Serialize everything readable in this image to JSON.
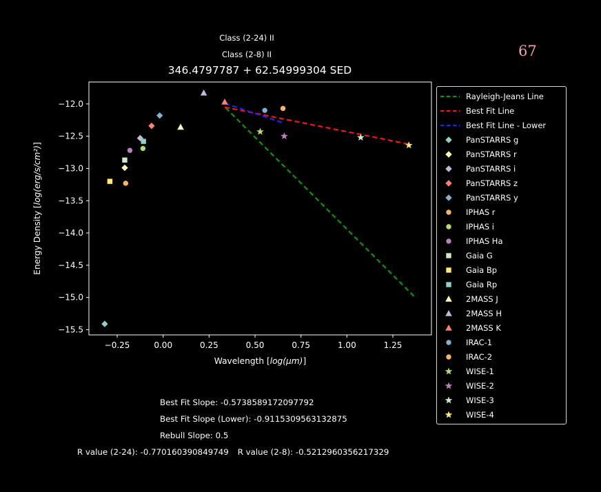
{
  "header": {
    "class_2_24": "Class (2-24) II",
    "class_2_8": "Class (2-8) II",
    "title": "346.4797787 + 62.54999304 SED",
    "page_number": "67",
    "page_number_color": "#f2a3af"
  },
  "stats": {
    "best_fit_slope": "Best Fit Slope: -0.5738589172097792",
    "best_fit_slope_lower": "Best Fit Slope (Lower): -0.9115309563132875",
    "rebull_slope": "Rebull Slope: 0.5",
    "r_value_2_24": "R value (2-24): -0.770160390849749",
    "r_value_2_8": "R value (2-8): -0.5212960356217329"
  },
  "chart_data": {
    "type": "scatter",
    "title": "346.4797787 + 62.54999304 SED",
    "xlabel": "Wavelength [log(μm)]",
    "ylabel": "Energy Density [log(erg/s/cm²)]",
    "xlim": [
      -0.404,
      1.46
    ],
    "ylim": [
      -15.58,
      -11.66
    ],
    "grid": false,
    "legend_position": "outside-right",
    "frame_color": "#ffffff",
    "background_color": "#000000",
    "xticks": {
      "values": [
        -0.25,
        0.0,
        0.25,
        0.5,
        0.75,
        1.0,
        1.25
      ],
      "labels": [
        "−0.25",
        "0.00",
        "0.25",
        "0.50",
        "0.75",
        "1.00",
        "1.25"
      ]
    },
    "yticks": {
      "values": [
        -12.0,
        -12.5,
        -13.0,
        -13.5,
        -14.0,
        -14.5,
        -15.0,
        -15.5
      ],
      "labels": [
        "−12.0",
        "−12.5",
        "−13.0",
        "−13.5",
        "−14.0",
        "−14.5",
        "−15.0",
        "−15.5"
      ]
    },
    "lines": [
      {
        "name": "Rayleigh-Jeans Line",
        "color": "#0f930f",
        "style": "dashed",
        "points": [
          [
            0.34,
            -12.06
          ],
          [
            1.375,
            -15.01
          ]
        ]
      },
      {
        "name": "Best Fit Line",
        "color": "#ff1010",
        "style": "dashed",
        "points": [
          [
            0.335,
            -12.05
          ],
          [
            1.35,
            -12.63
          ]
        ]
      },
      {
        "name": "Best Fit Line - Lower",
        "color": "#2020ff",
        "style": "dashed",
        "points": [
          [
            0.335,
            -11.99
          ],
          [
            0.66,
            -12.3
          ]
        ]
      }
    ],
    "points": [
      {
        "name": "PanSTARRS g",
        "marker": "diamond",
        "color": "#8dd3c7",
        "x": -0.318,
        "y": -15.41
      },
      {
        "name": "PanSTARRS r",
        "marker": "diamond",
        "color": "#ffffb3",
        "x": -0.209,
        "y": -12.99
      },
      {
        "name": "PanSTARRS i",
        "marker": "diamond",
        "color": "#bebada",
        "x": -0.125,
        "y": -12.53
      },
      {
        "name": "PanSTARRS z",
        "marker": "diamond",
        "color": "#fb8072",
        "x": -0.063,
        "y": -12.34
      },
      {
        "name": "PanSTARRS y",
        "marker": "diamond",
        "color": "#80b1d3",
        "x": -0.019,
        "y": -12.18
      },
      {
        "name": "IPHAS r",
        "marker": "circle",
        "color": "#fdb462",
        "x": -0.204,
        "y": -13.23
      },
      {
        "name": "IPHAS i",
        "marker": "circle",
        "color": "#b3de69",
        "x": -0.11,
        "y": -12.69
      },
      {
        "name": "IPHAS Ha",
        "marker": "circle",
        "color": "#bc80bd",
        "x": -0.181,
        "y": -12.72
      },
      {
        "name": "Gaia G",
        "marker": "square",
        "color": "#ccebc5",
        "x": -0.209,
        "y": -12.87
      },
      {
        "name": "Gaia Bp",
        "marker": "square",
        "color": "#ffed6f",
        "x": -0.29,
        "y": -13.2
      },
      {
        "name": "Gaia Rp",
        "marker": "square",
        "color": "#8dd3c7",
        "x": -0.107,
        "y": -12.58
      },
      {
        "name": "2MASS J",
        "marker": "triangle",
        "color": "#ffffb3",
        "x": 0.095,
        "y": -12.36
      },
      {
        "name": "2MASS H",
        "marker": "triangle",
        "color": "#bebada",
        "x": 0.221,
        "y": -11.83
      },
      {
        "name": "2MASS K",
        "marker": "triangle",
        "color": "#fb8072",
        "x": 0.335,
        "y": -11.97
      },
      {
        "name": "IRAC-1",
        "marker": "circle",
        "color": "#80b1d3",
        "x": 0.553,
        "y": -12.1
      },
      {
        "name": "IRAC-2",
        "marker": "circle",
        "color": "#fdb462",
        "x": 0.652,
        "y": -12.07
      },
      {
        "name": "WISE-1",
        "marker": "star",
        "color": "#b3de69",
        "x": 0.528,
        "y": -12.43
      },
      {
        "name": "WISE-2",
        "marker": "star",
        "color": "#bc80bd",
        "x": 0.659,
        "y": -12.5
      },
      {
        "name": "WISE-3",
        "marker": "star",
        "color": "#ccebc5",
        "x": 1.075,
        "y": -12.52
      },
      {
        "name": "WISE-4",
        "marker": "star",
        "color": "#ffed6f",
        "x": 1.337,
        "y": -12.64
      }
    ]
  }
}
